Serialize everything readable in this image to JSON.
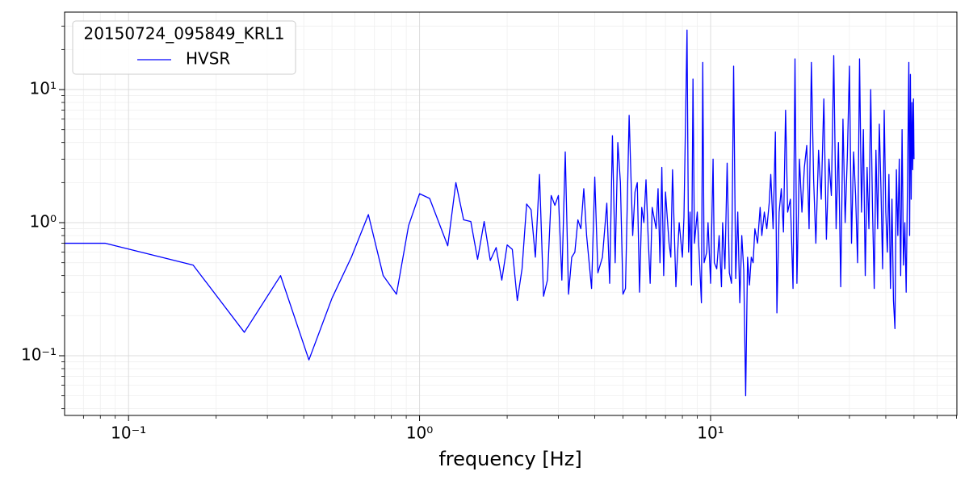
{
  "chart_data": {
    "type": "line",
    "xlabel": "frequency [Hz]",
    "legend_title": "20150724_095849_KRL1",
    "legend_position": "upper left",
    "xscale": "log",
    "yscale": "log",
    "grid": true,
    "xlim": [
      0.0603,
      70.2
    ],
    "ylim": [
      0.0356,
      38.2
    ],
    "xticks": [
      {
        "value": 0.1,
        "label": "10⁻¹"
      },
      {
        "value": 1,
        "label": "10⁰"
      },
      {
        "value": 10,
        "label": "10¹"
      }
    ],
    "yticks": [
      {
        "value": 0.1,
        "label": "10⁻¹"
      },
      {
        "value": 1,
        "label": "10⁰"
      },
      {
        "value": 10,
        "label": "10¹"
      }
    ],
    "xminor": [
      0.07,
      0.08,
      0.09,
      0.2,
      0.3,
      0.4,
      0.5,
      0.6,
      0.7,
      0.8,
      0.9,
      2,
      3,
      4,
      5,
      6,
      7,
      8,
      9,
      20,
      30,
      40,
      50,
      60,
      70
    ],
    "yminor": [
      0.04,
      0.05,
      0.06,
      0.07,
      0.08,
      0.09,
      0.2,
      0.3,
      0.4,
      0.5,
      0.6,
      0.7,
      0.8,
      0.9,
      2,
      3,
      4,
      5,
      6,
      7,
      8,
      9,
      20,
      30
    ],
    "x": [
      0.0603,
      0.0833,
      0.1667,
      0.25,
      0.333,
      0.4167,
      0.5,
      0.583,
      0.667,
      0.75,
      0.833,
      0.917,
      1.0,
      1.083,
      1.25,
      1.333,
      1.417,
      1.5,
      1.583,
      1.667,
      1.75,
      1.833,
      1.917,
      2.0,
      2.083,
      2.167,
      2.25,
      2.333,
      2.417,
      2.5,
      2.583,
      2.667,
      2.75,
      2.833,
      2.917,
      3.0,
      3.083,
      3.167,
      3.25,
      3.333,
      3.417,
      3.5,
      3.583,
      3.667,
      3.75,
      3.9,
      4.0,
      4.1,
      4.25,
      4.4,
      4.5,
      4.6,
      4.7,
      4.8,
      4.9,
      5.0,
      5.1,
      5.25,
      5.4,
      5.5,
      5.6,
      5.7,
      5.8,
      5.9,
      6.0,
      6.1,
      6.2,
      6.3,
      6.5,
      6.6,
      6.7,
      6.8,
      6.9,
      7.0,
      7.2,
      7.3,
      7.4,
      7.5,
      7.6,
      7.8,
      8.0,
      8.1,
      8.3,
      8.4,
      8.5,
      8.6,
      8.7,
      8.8,
      9.0,
      9.1,
      9.3,
      9.4,
      9.5,
      9.7,
      9.8,
      10.0,
      10.2,
      10.3,
      10.5,
      10.7,
      10.9,
      11.0,
      11.2,
      11.4,
      11.6,
      11.8,
      12.0,
      12.2,
      12.4,
      12.6,
      12.8,
      13.0,
      13.2,
      13.4,
      13.6,
      13.8,
      14.0,
      14.2,
      14.5,
      14.8,
      15.0,
      15.3,
      15.6,
      15.9,
      16.1,
      16.4,
      16.7,
      16.9,
      17.2,
      17.5,
      17.8,
      18.1,
      18.4,
      18.8,
      19.2,
      19.5,
      19.8,
      20.2,
      20.6,
      21,
      21.4,
      21.8,
      22.2,
      22.6,
      23,
      23.5,
      24,
      24.5,
      25,
      25.5,
      26,
      26.5,
      27,
      27.5,
      28,
      28.5,
      29,
      29.5,
      30,
      30.5,
      31,
      31.5,
      32,
      32.5,
      33,
      33.5,
      34,
      34.5,
      35,
      35.5,
      36,
      36.5,
      37,
      37.5,
      38,
      38.5,
      39,
      39.5,
      40,
      40.5,
      41,
      41.5,
      42,
      42.5,
      43,
      43.5,
      44,
      44.5,
      45,
      45.5,
      46,
      46.5,
      47,
      47.5,
      48,
      48.3,
      48.6,
      48.9,
      49.2,
      49.5,
      49.8,
      50
    ],
    "series": [
      {
        "name": "HVSR",
        "color": "#0000ff",
        "values": [
          0.7,
          0.7,
          0.48,
          0.15,
          0.4,
          0.093,
          0.27,
          0.55,
          1.15,
          0.4,
          0.29,
          0.95,
          1.65,
          1.52,
          0.67,
          2.0,
          1.05,
          1.02,
          0.53,
          1.02,
          0.52,
          0.65,
          0.37,
          0.68,
          0.63,
          0.26,
          0.45,
          1.38,
          1.25,
          0.55,
          2.3,
          0.28,
          0.37,
          1.6,
          1.35,
          1.6,
          0.37,
          3.4,
          0.29,
          0.55,
          0.6,
          1.05,
          0.9,
          1.8,
          0.8,
          0.32,
          2.2,
          0.42,
          0.55,
          1.4,
          0.35,
          4.5,
          0.5,
          4.0,
          2.0,
          0.29,
          0.32,
          6.4,
          0.8,
          1.7,
          2.0,
          0.3,
          1.3,
          1.0,
          2.1,
          0.8,
          0.35,
          1.3,
          0.9,
          1.8,
          0.5,
          2.6,
          0.4,
          1.7,
          0.7,
          0.55,
          2.5,
          0.9,
          0.33,
          1.0,
          0.55,
          1.1,
          28,
          0.6,
          1.2,
          0.34,
          12,
          0.7,
          1.2,
          0.7,
          0.25,
          16,
          0.5,
          0.6,
          1.0,
          0.35,
          3.0,
          0.5,
          0.45,
          0.8,
          0.33,
          1.0,
          0.45,
          2.8,
          0.42,
          0.35,
          15,
          0.38,
          1.2,
          0.25,
          0.8,
          0.44,
          0.05,
          0.55,
          0.34,
          0.55,
          0.5,
          0.9,
          0.7,
          1.3,
          0.8,
          1.2,
          0.9,
          1.4,
          2.3,
          0.9,
          4.8,
          0.21,
          1.2,
          1.8,
          0.85,
          7.0,
          1.2,
          1.5,
          0.32,
          17,
          0.35,
          3.0,
          1.2,
          2.6,
          3.8,
          0.9,
          16,
          2.1,
          0.7,
          3.5,
          1.5,
          8.5,
          0.75,
          3.0,
          1.6,
          18,
          0.9,
          4.0,
          0.33,
          6.0,
          1.0,
          3.1,
          15,
          0.7,
          3.4,
          1.6,
          0.5,
          17,
          1.2,
          5.0,
          0.4,
          2.6,
          0.9,
          10,
          1.3,
          0.32,
          3.5,
          0.9,
          5.5,
          1.8,
          0.45,
          7.0,
          1.2,
          0.6,
          2.3,
          0.32,
          1.5,
          0.26,
          0.16,
          2.5,
          0.8,
          3.0,
          0.4,
          5.0,
          0.48,
          1.0,
          0.3,
          2.0,
          16,
          0.8,
          13,
          1.5,
          8.0,
          2.5,
          8.5,
          3.0
        ]
      }
    ]
  }
}
